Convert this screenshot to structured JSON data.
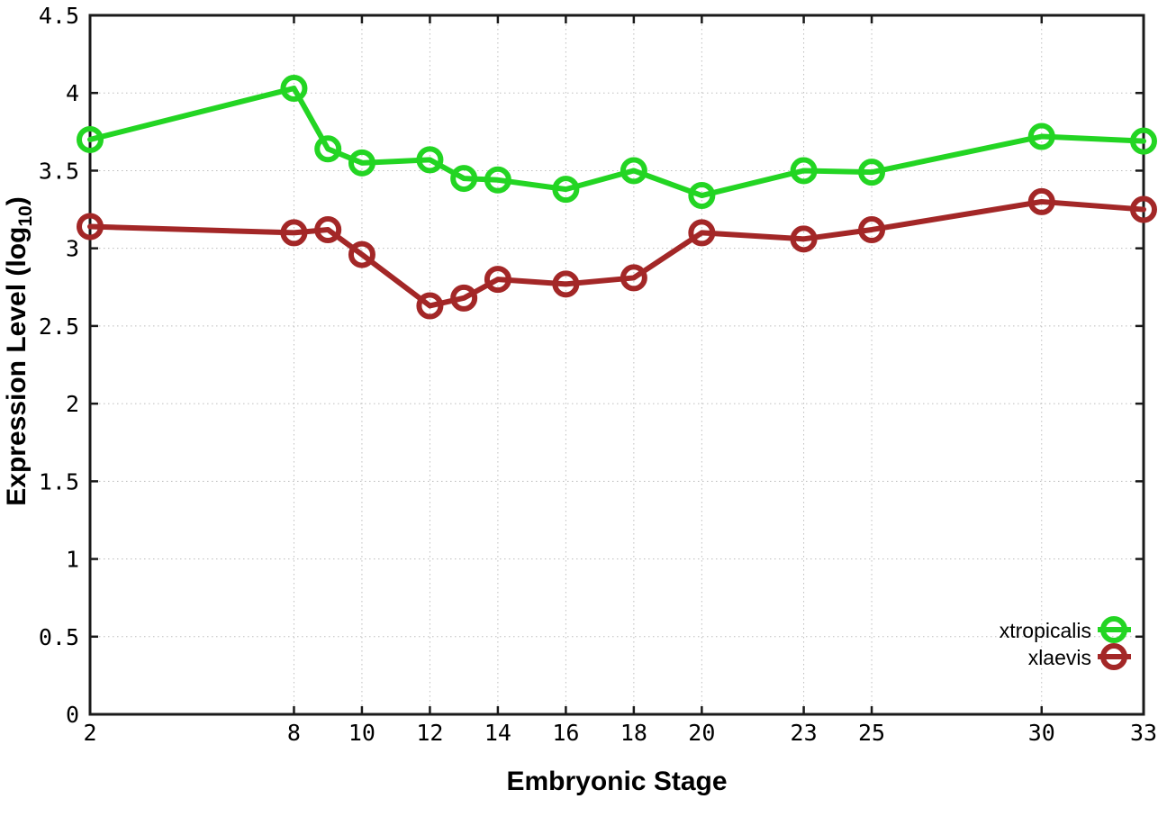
{
  "chart_data": {
    "type": "line",
    "title": "",
    "xlabel": "Embryonic Stage",
    "ylabel": {
      "prefix": "Expression Level (log",
      "sub": "10",
      "suffix": ")"
    },
    "x": [
      2,
      8,
      9,
      10,
      12,
      13,
      14,
      16,
      18,
      20,
      23,
      25,
      30,
      33
    ],
    "xticks": [
      2,
      8,
      10,
      12,
      14,
      16,
      18,
      20,
      23,
      25,
      30,
      33
    ],
    "ytick_values": [
      0,
      0.5,
      1,
      1.5,
      2,
      2.5,
      3,
      3.5,
      4,
      4.5
    ],
    "ytick_labels": [
      "0",
      "0.5",
      "1",
      "1.5",
      "2",
      "2.5",
      "3",
      "3.5",
      "4",
      "4.5"
    ],
    "xlim": [
      2,
      33
    ],
    "ylim": [
      0,
      4.5
    ],
    "grid": true,
    "legend_position": "inside-bottom-right",
    "series": [
      {
        "name": "xtropicalis",
        "color": "#23d523",
        "marker": "open-circle",
        "values": [
          3.7,
          4.03,
          3.64,
          3.55,
          3.57,
          3.45,
          3.44,
          3.38,
          3.5,
          3.34,
          3.5,
          3.49,
          3.72,
          3.69
        ]
      },
      {
        "name": "xlaevis",
        "color": "#a32727",
        "marker": "open-circle",
        "values": [
          3.14,
          3.1,
          3.12,
          2.96,
          2.63,
          2.68,
          2.8,
          2.77,
          2.81,
          3.1,
          3.06,
          3.12,
          3.3,
          3.25
        ]
      }
    ]
  },
  "styles": {
    "background": "#ffffff",
    "grid_color": "#bdbdbd",
    "axis_color": "#1a1a1a",
    "text_color": "#000000"
  }
}
